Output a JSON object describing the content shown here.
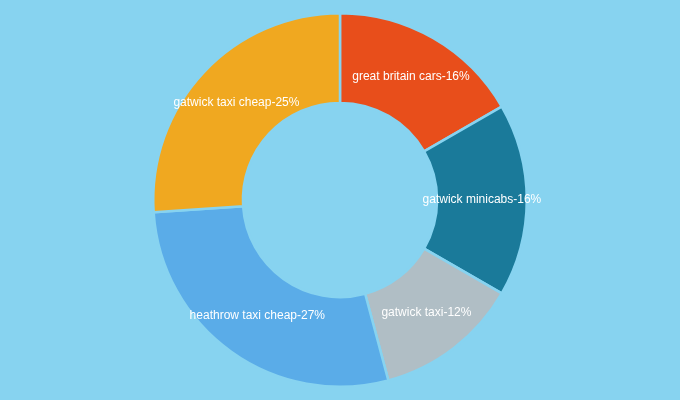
{
  "chart_data": {
    "type": "doughnut",
    "categories": [
      "great britain cars",
      "gatwick minicabs",
      "gatwick taxi",
      "heathrow taxi cheap",
      "gatwick taxi cheap"
    ],
    "values": [
      16,
      16,
      12,
      27,
      25
    ],
    "colors": [
      "#e84e1b",
      "#1a7a9a",
      "#b0bec5",
      "#5aace8",
      "#f0a820"
    ],
    "data_labels": true,
    "value_labels": [
      "great britain cars-16%",
      "gatwick minicabs-16%",
      "gatwick taxi-12%",
      "heathrow taxi cheap-27%",
      "gatwick taxi cheap-25%"
    ]
  }
}
